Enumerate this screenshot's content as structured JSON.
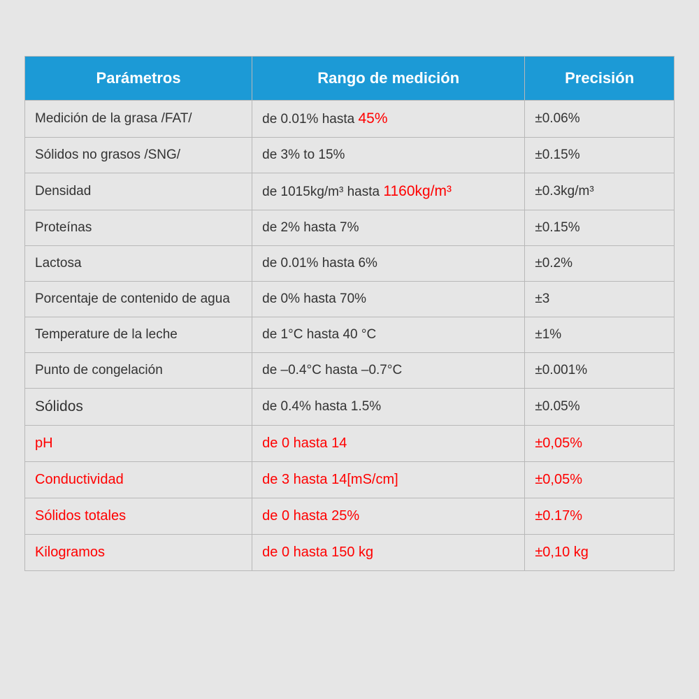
{
  "table": {
    "header_bg": "#1c9ad6",
    "header_color": "#ffffff",
    "border_color": "#b8b8b8",
    "background_color": "#e6e6e6",
    "text_color": "#333333",
    "red_color": "#ff0000",
    "columns": [
      {
        "label": "Parámetros",
        "width": "35%"
      },
      {
        "label": "Rango de medición",
        "width": "42%"
      },
      {
        "label": "Precisión",
        "width": "23%"
      }
    ],
    "rows": [
      {
        "param": "Medición de la grasa /FAT/",
        "range_prefix": "de 0.01% hasta ",
        "range_highlight": "45%",
        "range_suffix": "",
        "precision": "±0.06%",
        "has_highlight": true
      },
      {
        "param": "Sólidos no grasos /SNG/",
        "range": "de 3% to 15%",
        "precision": "±0.15%"
      },
      {
        "param": "Densidad",
        "range_prefix": "de 1015kg/m³ hasta ",
        "range_highlight": "1160kg/m³",
        "range_suffix": "",
        "precision": "±0.3kg/m³",
        "has_highlight": true
      },
      {
        "param": "Proteínas",
        "range": "de 2% hasta 7%",
        "precision": "±0.15%"
      },
      {
        "param": "Lactosa",
        "range": "de 0.01% hasta 6%",
        "precision": "±0.2%"
      },
      {
        "param": "Porcentaje de contenido de agua",
        "range": "de 0% hasta 70%",
        "precision": "±3"
      },
      {
        "param": "Temperature de la leche",
        "range": "de 1°C hasta 40 °C",
        "precision": "±1%"
      },
      {
        "param": "Punto de congelación",
        "range": "de –0.4°C hasta –0.7°C",
        "precision": "±0.001%"
      },
      {
        "param": "Sólidos",
        "param_large": true,
        "range": "de 0.4% hasta 1.5%",
        "precision": "±0.05%"
      },
      {
        "param": "pH",
        "range": "de 0 hasta 14",
        "precision": "±0,05%",
        "red_row": true
      },
      {
        "param": "Conductividad",
        "range": "de 3 hasta 14[mS/cm]",
        "precision": "±0,05%",
        "red_row": true
      },
      {
        "param": "Sólidos totales",
        "range": "de 0 hasta 25%",
        "precision": "±0.17%",
        "red_row": true
      },
      {
        "param": "Kilogramos",
        "range": "de 0 hasta 150 kg",
        "precision": "±0,10 kg",
        "red_row": true
      }
    ]
  }
}
